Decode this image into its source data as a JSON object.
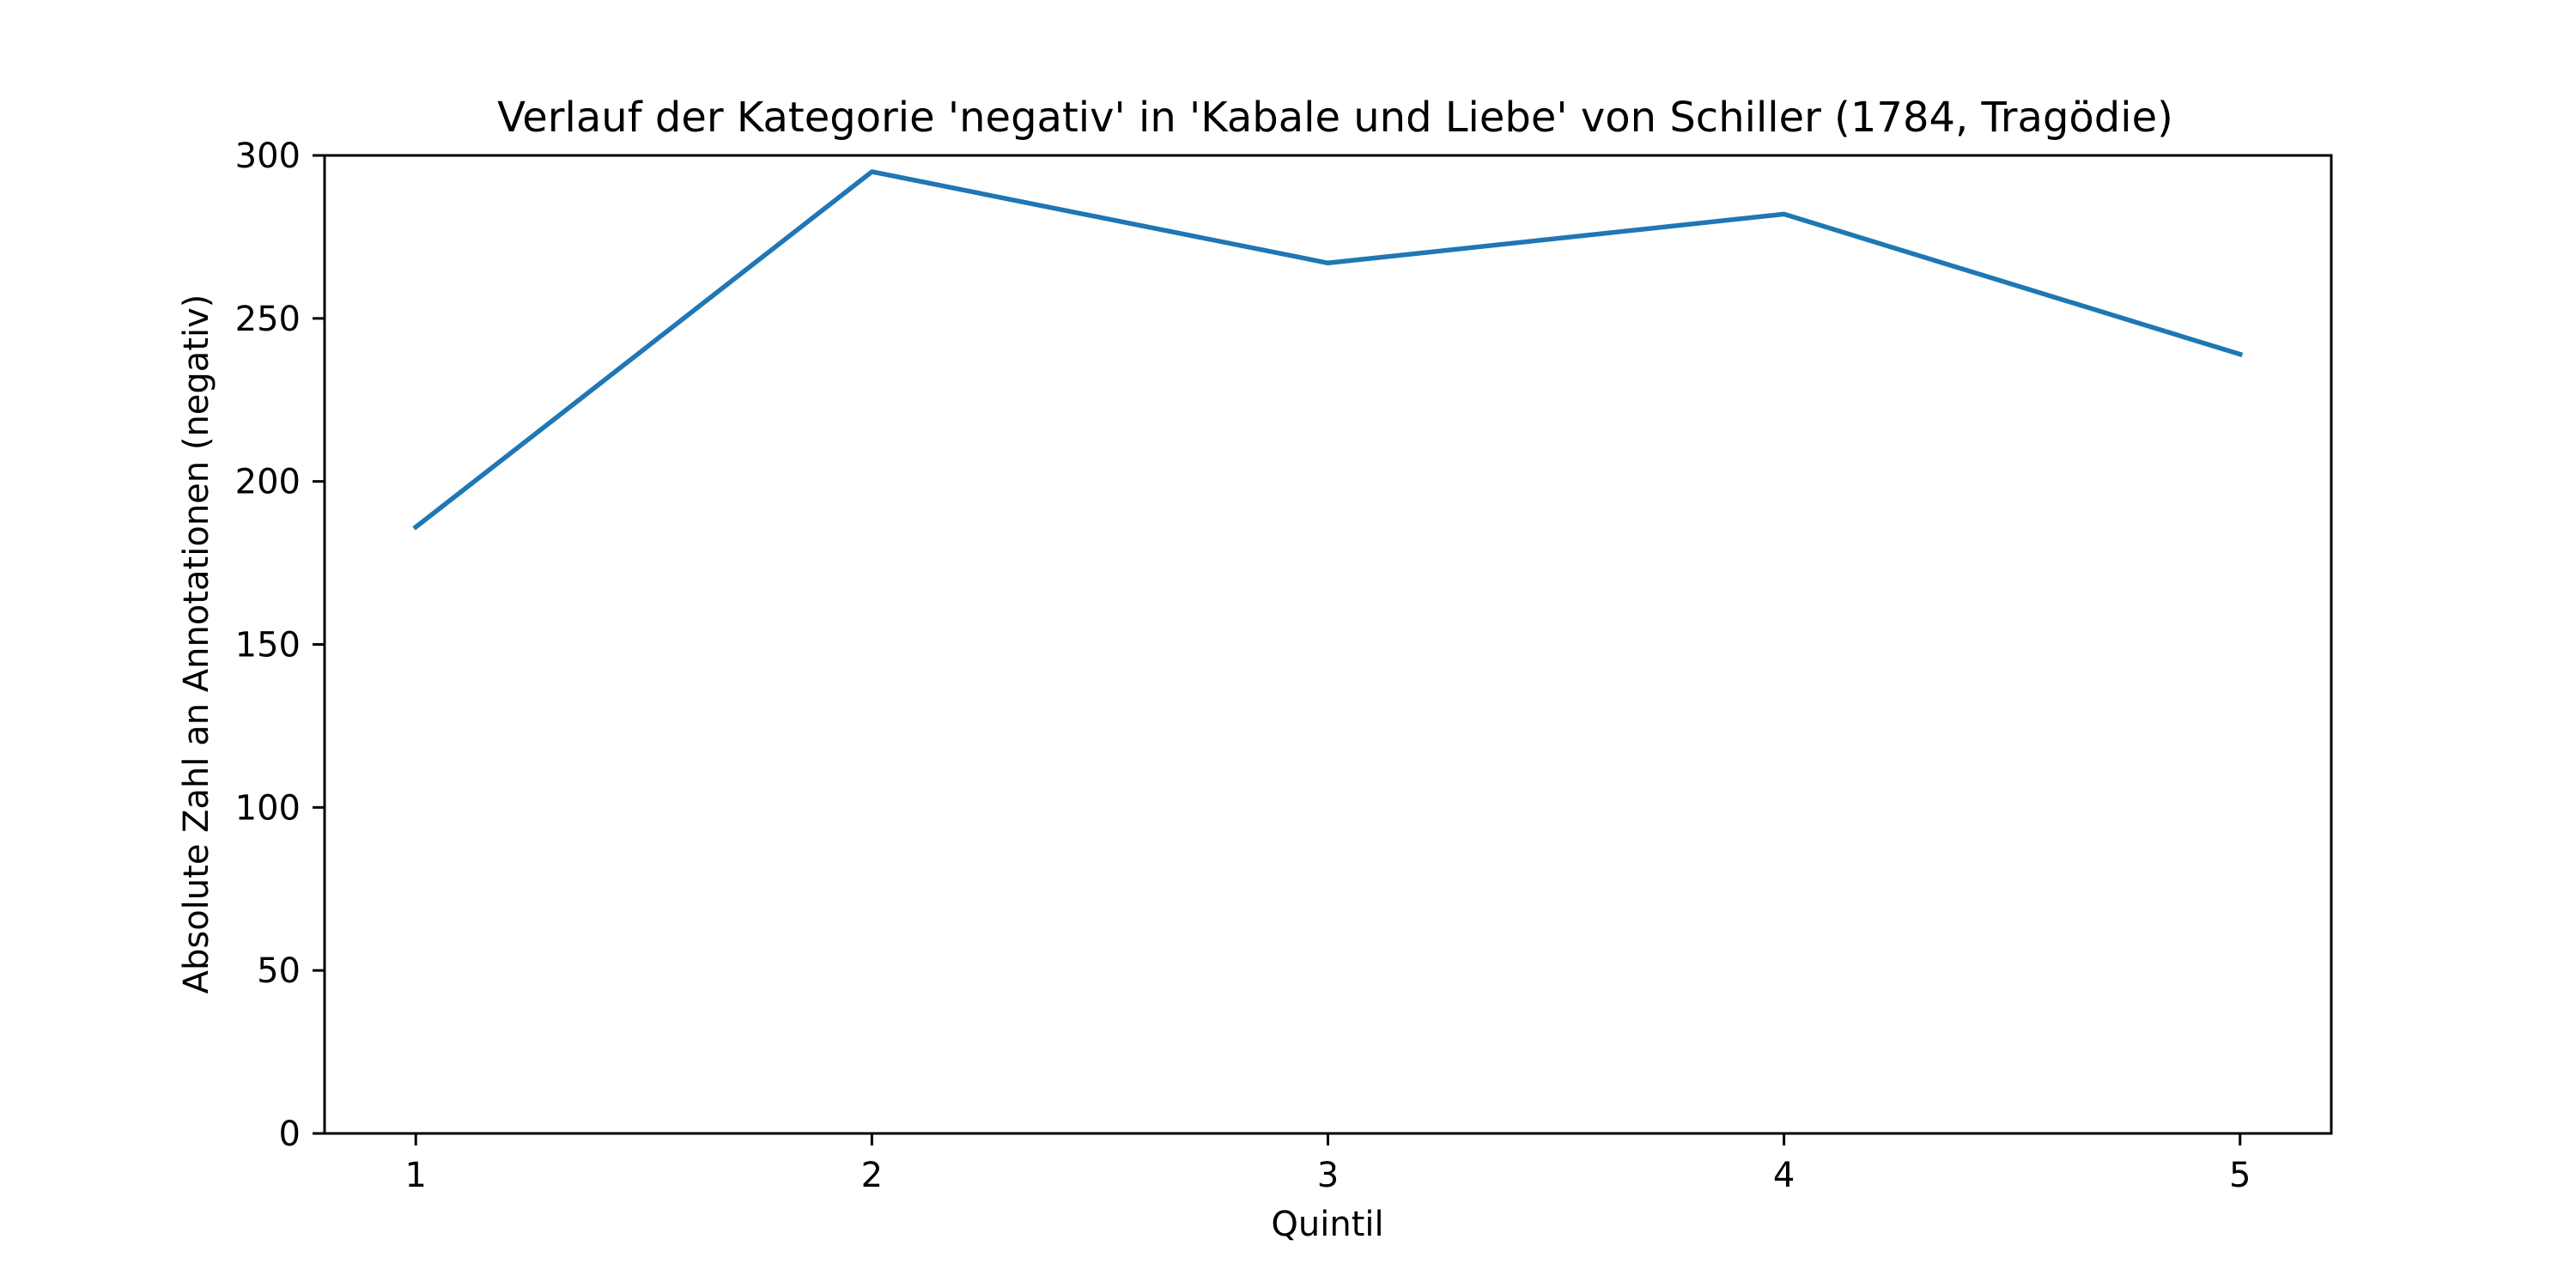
{
  "chart_data": {
    "type": "line",
    "title": "Verlauf der Kategorie 'negativ' in 'Kabale und Liebe' von Schiller (1784, Tragödie)",
    "xlabel": "Quintil",
    "ylabel": "Absolute Zahl an Annotationen (negativ)",
    "x": [
      1,
      2,
      3,
      4,
      5
    ],
    "x_tick_labels": [
      "1",
      "2",
      "3",
      "4",
      "5"
    ],
    "xlim": [
      0.8,
      5.2
    ],
    "ylim": [
      0,
      300
    ],
    "y_ticks": [
      0,
      50,
      100,
      150,
      200,
      250,
      300
    ],
    "y_tick_labels": [
      "0",
      "50",
      "100",
      "150",
      "200",
      "250",
      "300"
    ],
    "grid": false,
    "series": [
      {
        "values": [
          186,
          295,
          267,
          282,
          239
        ],
        "color": "#1f77b4"
      }
    ]
  }
}
